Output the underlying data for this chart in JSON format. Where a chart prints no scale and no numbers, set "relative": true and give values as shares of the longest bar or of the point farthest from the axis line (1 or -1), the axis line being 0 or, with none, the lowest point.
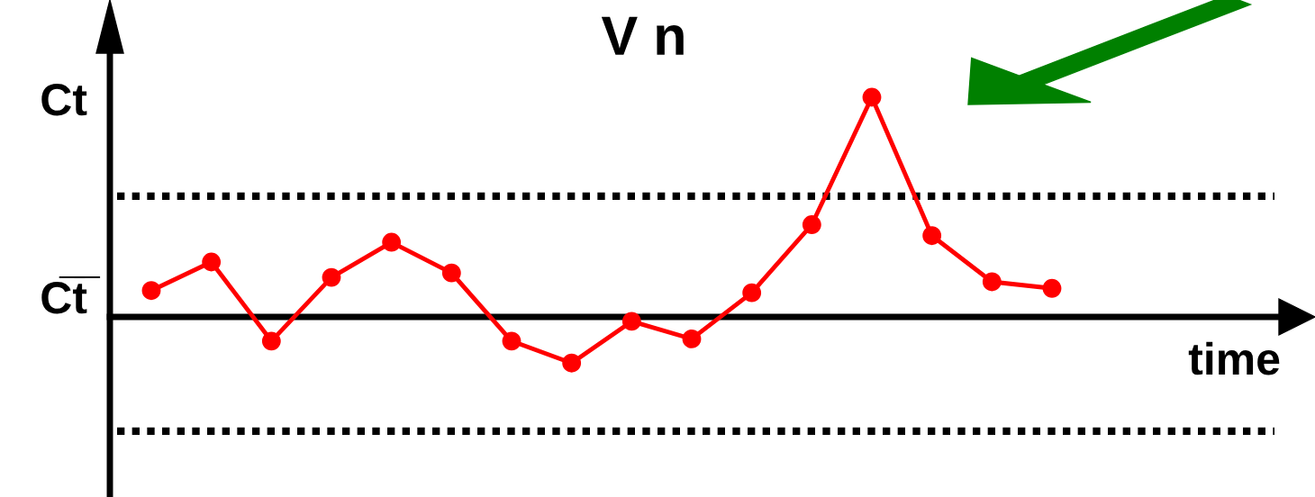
{
  "chart_data": {
    "type": "line",
    "relative": true,
    "title": "V n",
    "xlabel": "time",
    "categories": [
      null,
      null,
      null,
      null,
      null,
      null,
      null,
      null,
      null,
      null,
      null,
      null,
      null,
      null,
      null,
      null
    ],
    "series": [
      {
        "color": "#ff0000",
        "values": [
          0.12,
          0.25,
          -0.11,
          0.18,
          0.34,
          0.2,
          -0.11,
          -0.21,
          -0.02,
          -0.1,
          0.11,
          0.42,
          1,
          0.37,
          0.16,
          0.13
        ]
      }
    ],
    "marker": "circle",
    "line_style": "solid",
    "legend": false,
    "ref_lines": [
      {
        "axis": "y",
        "value": 0.55,
        "color": "#000000",
        "line_style": "dotted"
      },
      {
        "axis": "y",
        "value": -0.52,
        "color": "#000000",
        "line_style": "dotted"
      }
    ],
    "annotations": [
      "Ct",
      "C̅t̅"
    ]
  }
}
